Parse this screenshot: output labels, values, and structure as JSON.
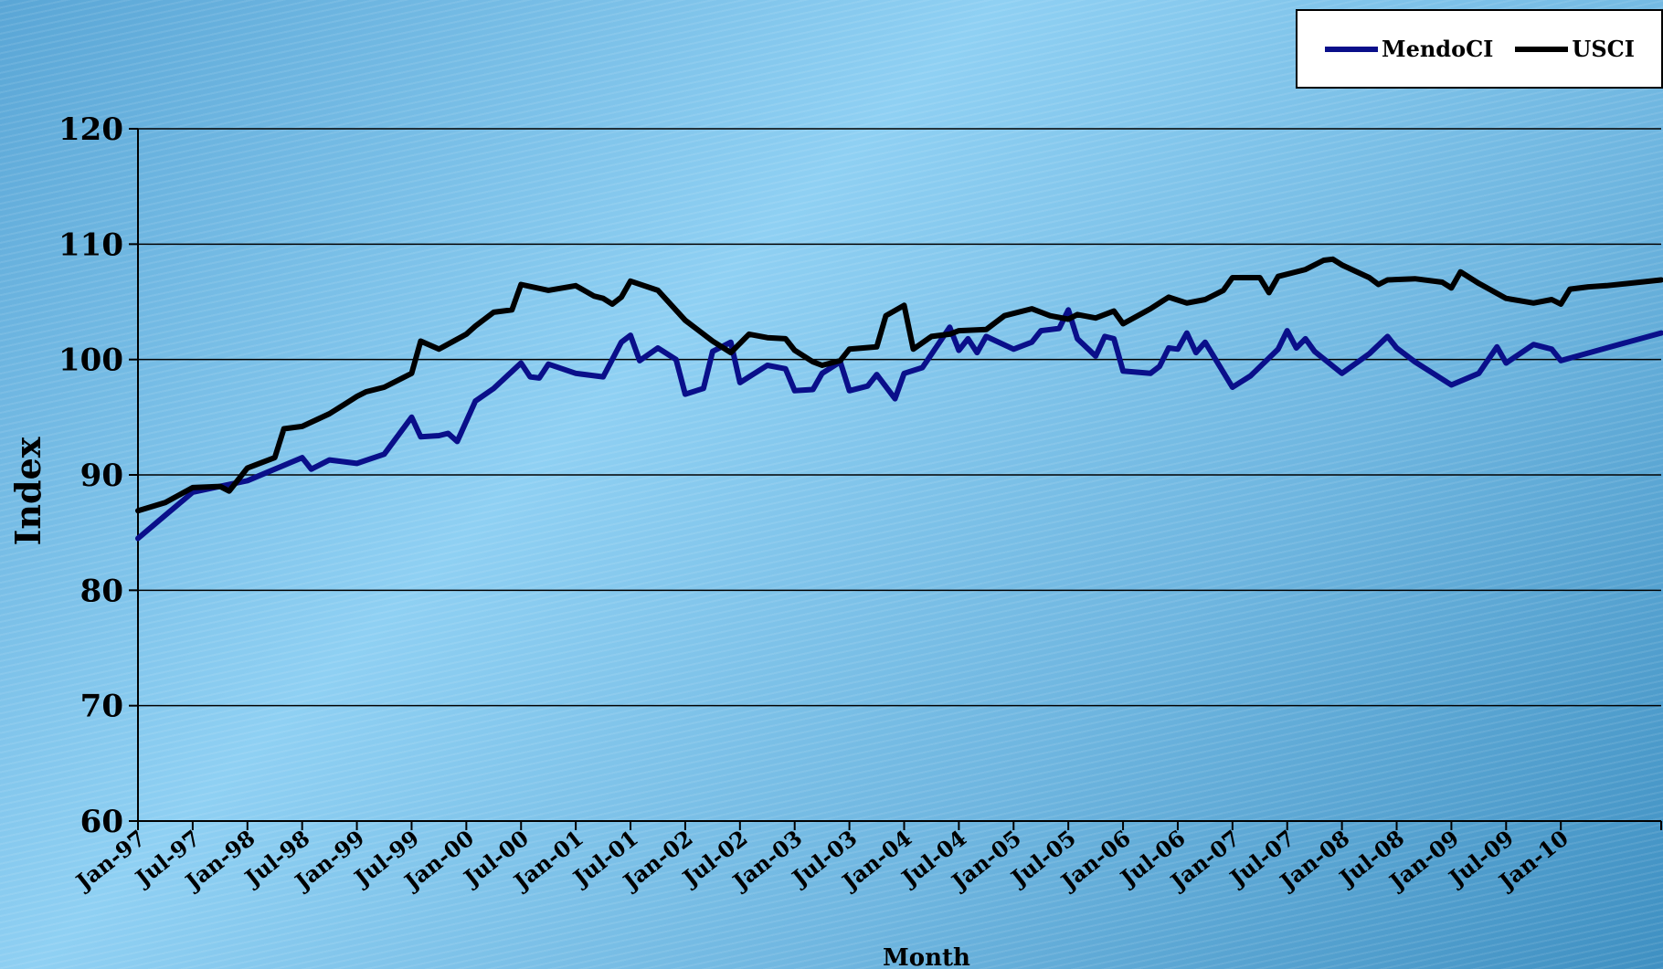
{
  "chart_data": {
    "type": "line",
    "title": "",
    "xlabel": "Month",
    "ylabel": "Index",
    "ylim": [
      60,
      120
    ],
    "yticks": [
      "60",
      "70",
      "80",
      "90",
      "100",
      "110",
      "120"
    ],
    "x_tick_labels": [
      "Jan-97",
      "Jul-97",
      "Jan-98",
      "Jul-98",
      "Jan-99",
      "Jul-99",
      "Jan-00",
      "Jul-00",
      "Jan-01",
      "Jul-01",
      "Jan-02",
      "Jul-02",
      "Jan-03",
      "Jul-03",
      "Jan-04",
      "Jul-04",
      "Jan-05",
      "Jul-05",
      "Jan-06",
      "Jul-06",
      "Jan-07",
      "Jul-07",
      "Jan-08",
      "Jul-08",
      "Jan-09",
      "Jul-09",
      "Jan-10"
    ],
    "x_range": [
      "Jan-97",
      "Dec-10"
    ],
    "grid": "horizontal",
    "legend_position": "top-right",
    "series": [
      {
        "name": "MendoCI",
        "color": "#0a0f8a",
        "points": [
          [
            "Jan-97",
            84.5
          ],
          [
            "Apr-97",
            86.5
          ],
          [
            "Jul-97",
            88.5
          ],
          [
            "Oct-97",
            89.0
          ],
          [
            "Jan-98",
            89.5
          ],
          [
            "Apr-98",
            90.5
          ],
          [
            "Jul-98",
            91.5
          ],
          [
            "Aug-98",
            90.5
          ],
          [
            "Oct-98",
            91.3
          ],
          [
            "Jan-99",
            91.0
          ],
          [
            "Apr-99",
            91.8
          ],
          [
            "Jul-99",
            95.0
          ],
          [
            "Aug-99",
            93.3
          ],
          [
            "Oct-99",
            93.4
          ],
          [
            "Nov-99",
            93.6
          ],
          [
            "Dec-99",
            92.9
          ],
          [
            "Feb-00",
            96.4
          ],
          [
            "Apr-00",
            97.5
          ],
          [
            "Jul-00",
            99.7
          ],
          [
            "Aug-00",
            98.5
          ],
          [
            "Sep-00",
            98.4
          ],
          [
            "Oct-00",
            99.6
          ],
          [
            "Jan-01",
            98.8
          ],
          [
            "Apr-01",
            98.5
          ],
          [
            "Jun-01",
            101.5
          ],
          [
            "Jul-01",
            102.1
          ],
          [
            "Aug-01",
            99.9
          ],
          [
            "Oct-01",
            101.0
          ],
          [
            "Dec-01",
            100.0
          ],
          [
            "Jan-02",
            97.0
          ],
          [
            "Mar-02",
            97.5
          ],
          [
            "Apr-02",
            100.7
          ],
          [
            "Jun-02",
            101.5
          ],
          [
            "Jul-02",
            98.0
          ],
          [
            "Oct-02",
            99.5
          ],
          [
            "Dec-02",
            99.2
          ],
          [
            "Jan-03",
            97.3
          ],
          [
            "Mar-03",
            97.4
          ],
          [
            "Apr-03",
            98.8
          ],
          [
            "Jun-03",
            99.8
          ],
          [
            "Jul-03",
            97.3
          ],
          [
            "Sep-03",
            97.7
          ],
          [
            "Oct-03",
            98.7
          ],
          [
            "Dec-03",
            96.6
          ],
          [
            "Jan-04",
            98.8
          ],
          [
            "Mar-04",
            99.3
          ],
          [
            "Jun-04",
            102.8
          ],
          [
            "Jul-04",
            100.8
          ],
          [
            "Aug-04",
            101.8
          ],
          [
            "Sep-04",
            100.6
          ],
          [
            "Oct-04",
            102.0
          ],
          [
            "Jan-05",
            100.9
          ],
          [
            "Mar-05",
            101.5
          ],
          [
            "Apr-05",
            102.5
          ],
          [
            "Jun-05",
            102.7
          ],
          [
            "Jul-05",
            104.3
          ],
          [
            "Aug-05",
            101.8
          ],
          [
            "Oct-05",
            100.3
          ],
          [
            "Nov-05",
            102.0
          ],
          [
            "Dec-05",
            101.8
          ],
          [
            "Jan-06",
            99.0
          ],
          [
            "Apr-06",
            98.8
          ],
          [
            "May-06",
            99.4
          ],
          [
            "Jun-06",
            101.0
          ],
          [
            "Jul-06",
            100.9
          ],
          [
            "Aug-06",
            102.3
          ],
          [
            "Sep-06",
            100.6
          ],
          [
            "Oct-06",
            101.5
          ],
          [
            "Jan-07",
            97.6
          ],
          [
            "Mar-07",
            98.6
          ],
          [
            "Jun-07",
            100.9
          ],
          [
            "Jul-07",
            102.5
          ],
          [
            "Aug-07",
            101.0
          ],
          [
            "Sep-07",
            101.8
          ],
          [
            "Oct-07",
            100.7
          ],
          [
            "Jan-08",
            98.8
          ],
          [
            "Apr-08",
            100.5
          ],
          [
            "Jun-08",
            102.0
          ],
          [
            "Jul-08",
            101.0
          ],
          [
            "Sep-08",
            99.8
          ],
          [
            "Jan-09",
            97.8
          ],
          [
            "Apr-09",
            98.8
          ],
          [
            "Jun-09",
            101.1
          ],
          [
            "Jul-09",
            99.7
          ],
          [
            "Oct-09",
            101.3
          ],
          [
            "Dec-09",
            100.9
          ],
          [
            "Jan-10",
            99.9
          ],
          [
            "Jun-10",
            101.0
          ],
          [
            "Dec-10",
            102.3
          ]
        ]
      },
      {
        "name": "USCI",
        "color": "#000000",
        "points": [
          [
            "Jan-97",
            86.9
          ],
          [
            "Apr-97",
            87.6
          ],
          [
            "Jul-97",
            88.9
          ],
          [
            "Oct-97",
            89.0
          ],
          [
            "Nov-97",
            88.6
          ],
          [
            "Jan-98",
            90.6
          ],
          [
            "Apr-98",
            91.5
          ],
          [
            "May-98",
            94.0
          ],
          [
            "Jul-98",
            94.2
          ],
          [
            "Oct-98",
            95.3
          ],
          [
            "Jan-99",
            96.8
          ],
          [
            "Feb-99",
            97.2
          ],
          [
            "Apr-99",
            97.6
          ],
          [
            "Jul-99",
            98.8
          ],
          [
            "Aug-99",
            101.6
          ],
          [
            "Oct-99",
            100.9
          ],
          [
            "Jan-00",
            102.2
          ],
          [
            "Feb-00",
            102.9
          ],
          [
            "Apr-00",
            104.1
          ],
          [
            "Jun-00",
            104.3
          ],
          [
            "Jul-00",
            106.5
          ],
          [
            "Oct-00",
            106.0
          ],
          [
            "Jan-01",
            106.4
          ],
          [
            "Mar-01",
            105.5
          ],
          [
            "Apr-01",
            105.3
          ],
          [
            "May-01",
            104.8
          ],
          [
            "Jun-01",
            105.4
          ],
          [
            "Jul-01",
            106.8
          ],
          [
            "Oct-01",
            106.0
          ],
          [
            "Jan-02",
            103.4
          ],
          [
            "Apr-02",
            101.6
          ],
          [
            "Jun-02",
            100.6
          ],
          [
            "Aug-02",
            102.2
          ],
          [
            "Oct-02",
            101.9
          ],
          [
            "Dec-02",
            101.8
          ],
          [
            "Jan-03",
            100.8
          ],
          [
            "Mar-03",
            99.8
          ],
          [
            "Apr-03",
            99.5
          ],
          [
            "Jun-03",
            99.9
          ],
          [
            "Jul-03",
            100.9
          ],
          [
            "Oct-03",
            101.1
          ],
          [
            "Nov-03",
            103.8
          ],
          [
            "Jan-04",
            104.7
          ],
          [
            "Feb-04",
            100.9
          ],
          [
            "Apr-04",
            102.0
          ],
          [
            "Jun-04",
            102.2
          ],
          [
            "Jul-04",
            102.5
          ],
          [
            "Oct-04",
            102.6
          ],
          [
            "Dec-04",
            103.8
          ],
          [
            "Mar-05",
            104.4
          ],
          [
            "May-05",
            103.8
          ],
          [
            "Jul-05",
            103.5
          ],
          [
            "Aug-05",
            103.9
          ],
          [
            "Oct-05",
            103.6
          ],
          [
            "Dec-05",
            104.2
          ],
          [
            "Jan-06",
            103.1
          ],
          [
            "Apr-06",
            104.4
          ],
          [
            "Jun-06",
            105.4
          ],
          [
            "Aug-06",
            104.9
          ],
          [
            "Oct-06",
            105.2
          ],
          [
            "Dec-06",
            106.0
          ],
          [
            "Jan-07",
            107.1
          ],
          [
            "Apr-07",
            107.1
          ],
          [
            "May-07",
            105.8
          ],
          [
            "Jun-07",
            107.2
          ],
          [
            "Sep-07",
            107.8
          ],
          [
            "Nov-07",
            108.6
          ],
          [
            "Dec-07",
            108.7
          ],
          [
            "Jan-08",
            108.2
          ],
          [
            "Apr-08",
            107.1
          ],
          [
            "May-08",
            106.5
          ],
          [
            "Jun-08",
            106.9
          ],
          [
            "Sep-08",
            107.0
          ],
          [
            "Dec-08",
            106.7
          ],
          [
            "Jan-09",
            106.2
          ],
          [
            "Feb-09",
            107.6
          ],
          [
            "Apr-09",
            106.6
          ],
          [
            "Jul-09",
            105.3
          ],
          [
            "Oct-09",
            104.9
          ],
          [
            "Dec-09",
            105.2
          ],
          [
            "Jan-10",
            104.8
          ],
          [
            "Feb-10",
            106.1
          ],
          [
            "Apr-10",
            106.3
          ],
          [
            "Jun-10",
            106.4
          ],
          [
            "Dec-10",
            106.9
          ]
        ]
      }
    ]
  }
}
